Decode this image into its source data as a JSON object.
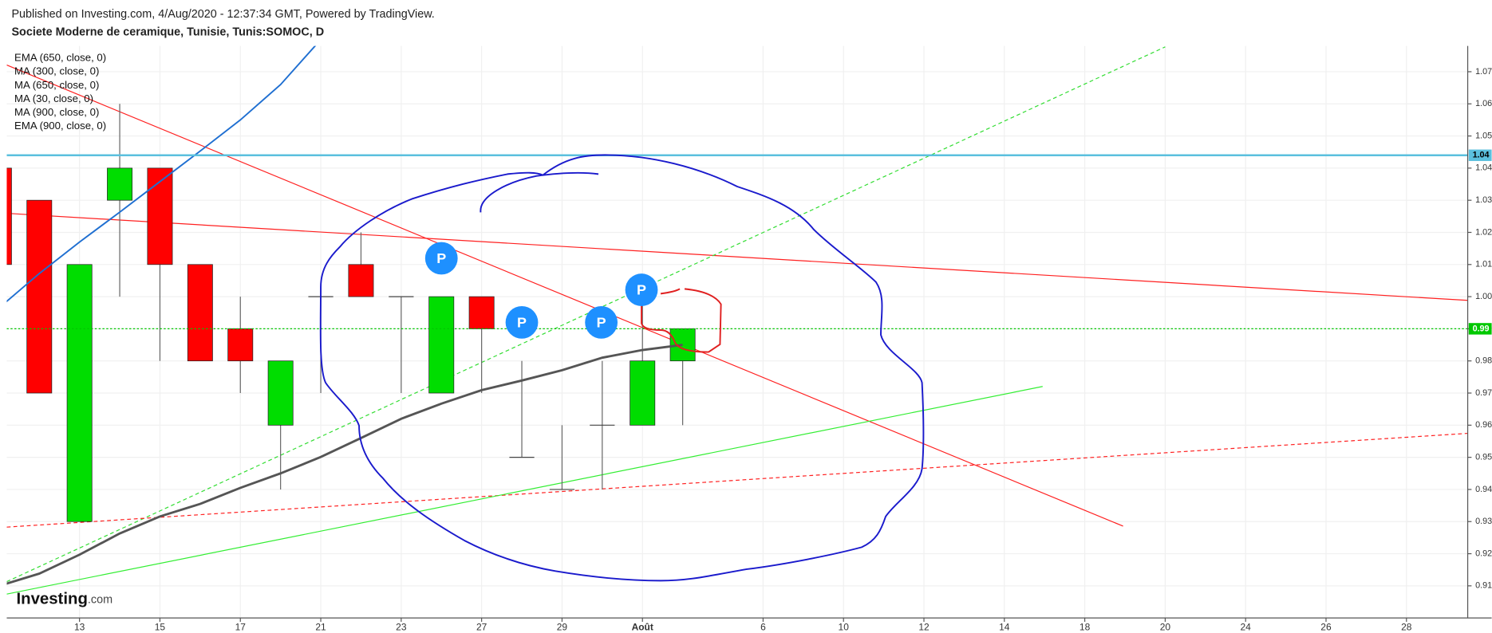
{
  "header": "Published on Investing.com, 4/Aug/2020 - 12:37:34 GMT, Powered by TradingView.",
  "logo": {
    "brand": "Investing",
    "suffix": ".com"
  },
  "chart_data": {
    "type": "candlestick",
    "title": "Societe Moderne de ceramique, Tunisie, Tunis:SOMOC, D",
    "indicators": [
      "EMA (650, close, 0)",
      "MA (300, close, 0)",
      "MA (650, close, 0)",
      "MA (30, close, 0)",
      "MA (900, close, 0)",
      "EMA (900, close, 0)"
    ],
    "categories": [
      null,
      null,
      "13",
      null,
      "15",
      null,
      "17",
      null,
      "21",
      null,
      "23",
      null,
      "27",
      null,
      "29",
      null,
      "Août",
      null,
      null,
      "6",
      null,
      "10",
      null,
      "12",
      null,
      "14",
      null,
      "18",
      null,
      "20",
      null,
      "24",
      null,
      "26",
      null,
      "28",
      null
    ],
    "open": [
      1.04,
      1.03,
      0.93,
      1.03,
      1.04,
      1.01,
      0.99,
      0.96,
      1.0,
      1.01,
      1.0,
      0.97,
      1.0,
      0.95,
      0.94,
      0.96,
      0.96,
      0.98,
      null,
      null,
      null,
      null,
      null,
      null,
      null,
      null,
      null,
      null,
      null,
      null,
      null,
      null,
      null,
      null,
      null,
      null,
      null
    ],
    "high": [
      1.04,
      1.03,
      1.01,
      1.06,
      1.04,
      1.01,
      1.0,
      0.98,
      1.0,
      1.02,
      1.0,
      1.0,
      1.0,
      0.98,
      0.96,
      0.98,
      1.0,
      0.99,
      null,
      null,
      null,
      null,
      null,
      null,
      null,
      null,
      null,
      null,
      null,
      null,
      null,
      null,
      null,
      null,
      null,
      null,
      null
    ],
    "low": [
      1.01,
      0.97,
      0.93,
      1.0,
      0.98,
      0.98,
      0.97,
      0.94,
      0.97,
      1.0,
      0.97,
      0.97,
      0.97,
      0.95,
      0.94,
      0.94,
      0.96,
      0.96,
      null,
      null,
      null,
      null,
      null,
      null,
      null,
      null,
      null,
      null,
      null,
      null,
      null,
      null,
      null,
      null,
      null,
      null,
      null
    ],
    "close": [
      1.01,
      0.97,
      1.01,
      1.04,
      1.01,
      0.98,
      0.98,
      0.98,
      1.0,
      1.0,
      1.0,
      1.0,
      0.99,
      0.95,
      0.94,
      0.96,
      0.98,
      0.99,
      null,
      null,
      null,
      null,
      null,
      null,
      null,
      null,
      null,
      null,
      null,
      null,
      null,
      null,
      null,
      null,
      null,
      null,
      null
    ],
    "up_color": "#00dd00",
    "down_color": "#ff0000",
    "lines": [
      {
        "color": "#1f6fd1",
        "values": [
          0.9965,
          1.0072,
          1.017,
          1.0263,
          1.0358,
          1.0453,
          1.055,
          1.066,
          1.08,
          null,
          null,
          null,
          null,
          null,
          null,
          null,
          null,
          null,
          null,
          null,
          null,
          null,
          null,
          null,
          null,
          null,
          null,
          null,
          null,
          null,
          null,
          null,
          null,
          null,
          null,
          null,
          null
        ]
      },
      {
        "color": "#555555",
        "values": [
          0.91,
          0.9138,
          0.9197,
          0.9263,
          0.9316,
          0.9355,
          0.9405,
          0.945,
          0.9501,
          0.956,
          0.962,
          0.9667,
          0.9709,
          0.9739,
          0.9771,
          0.981,
          0.9834,
          0.985,
          null,
          null,
          null,
          null,
          null,
          null,
          null,
          null,
          null,
          null,
          null,
          null,
          null,
          null,
          null,
          null,
          null,
          null,
          null
        ]
      }
    ],
    "price_lines": [
      {
        "value": 1.044,
        "label": "1.04",
        "color": "#5bc0de",
        "dashed": false
      },
      {
        "value": 0.99,
        "label": "0.99",
        "color": "#00c800",
        "dashed": true
      }
    ],
    "markers": [
      "P",
      "P",
      "P",
      "P"
    ],
    "ylim": [
      0.9,
      1.078
    ],
    "yticks": [
      {
        "value": 0.91,
        "label": "0.91"
      },
      {
        "value": 0.92,
        "label": "0.92"
      },
      {
        "value": 0.93,
        "label": "0.93"
      },
      {
        "value": 0.94,
        "label": "0.94"
      },
      {
        "value": 0.95,
        "label": "0.95"
      },
      {
        "value": 0.96,
        "label": "0.96"
      },
      {
        "value": 0.97,
        "label": "0.97"
      },
      {
        "value": 0.98,
        "label": "0.98"
      },
      {
        "value": 0.99,
        "label": "0.99"
      },
      {
        "value": 1.0,
        "label": "1.00"
      },
      {
        "value": 1.01,
        "label": "1.01"
      },
      {
        "value": 1.02,
        "label": "1.02"
      },
      {
        "value": 1.03,
        "label": "1.03"
      },
      {
        "value": 1.04,
        "label": "1.04"
      },
      {
        "value": 1.05,
        "label": "1.05"
      },
      {
        "value": 1.06,
        "label": "1.06"
      },
      {
        "value": 1.07,
        "label": "1.07"
      }
    ],
    "grid": true
  }
}
